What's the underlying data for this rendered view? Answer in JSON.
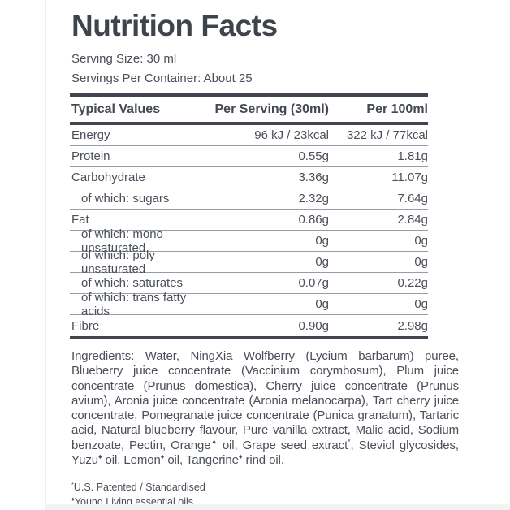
{
  "title": "Nutrition Facts",
  "serving_info": {
    "serving_size": "Serving Size: 30 ml",
    "servings_per_container": "Servings Per Container: About 25"
  },
  "table": {
    "headers": [
      "Typical Values",
      "Per Serving (30ml)",
      "Per 100ml"
    ],
    "rows": [
      {
        "label": "Energy",
        "per_serving": "96 kJ / 23kcal",
        "per_100ml": "322 kJ / 77kcal"
      },
      {
        "label": "Protein",
        "per_serving": "0.55g",
        "per_100ml": "1.81g"
      },
      {
        "label": "Carbohydrate",
        "per_serving": "3.36g",
        "per_100ml": "11.07g"
      },
      {
        "label": "of which: sugars",
        "per_serving": "2.32g",
        "per_100ml": "7.64g"
      },
      {
        "label": "Fat",
        "per_serving": "0.86g",
        "per_100ml": "2.84g"
      },
      {
        "label": "of which: mono unsaturated",
        "per_serving": "0g",
        "per_100ml": "0g"
      },
      {
        "label": "of which: poly unsaturated",
        "per_serving": "0g",
        "per_100ml": "0g"
      },
      {
        "label": "of which: saturates",
        "per_serving": "0.07g",
        "per_100ml": "0.22g"
      },
      {
        "label": "of which: trans fatty acids",
        "per_serving": "0g",
        "per_100ml": "0g"
      },
      {
        "label": "Fibre",
        "per_serving": "0.90g",
        "per_100ml": "2.98g"
      }
    ]
  },
  "ingredients": "Ingredients: Water, NingXia Wolfberry (Lycium barbarum) puree, Blueberry juice concentrate (Vaccinium corymbosum), Plum juice concentrate (Prunus domestica), Cherry juice concentrate (Prunus avium), Aronia juice concentrate (Aronia melanocarpa), Tart cherry juice concentrate, Pomegranate juice concentrate (Punica granatum), Tartaric acid, Natural blueberry flavour, Pure vanilla extract, Malic acid, Sodium benzoate, Pectin, Orange♦ oil, Grape seed extract*, Steviol glycosides, Yuzu♦ oil, Lemon♦ oil, Tangerine♦ rind  oil.",
  "footnotes": [
    "*U.S. Patented / Standardised",
    "♦Young Living essential oils"
  ],
  "colors": {
    "text": "#4a4f59",
    "title": "#3e434c",
    "heavy_rule": "#40454e",
    "light_rule": "#989da4",
    "background": "#ffffff"
  }
}
